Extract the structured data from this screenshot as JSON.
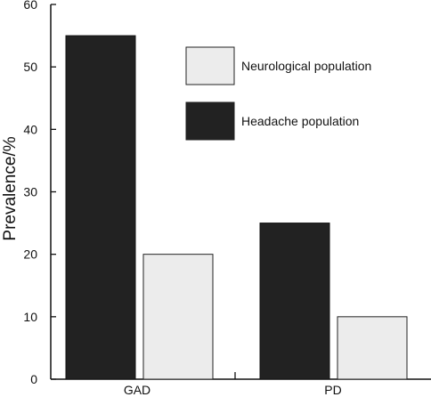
{
  "chart_data": {
    "type": "bar",
    "categories": [
      "GAD",
      "PD"
    ],
    "series": [
      {
        "name": "Headache population",
        "values": [
          55,
          25
        ],
        "color": "#222222"
      },
      {
        "name": "Neurological population",
        "values": [
          20,
          10
        ],
        "color": "#ececec"
      }
    ],
    "ylabel": "Prevalence/%",
    "ylim": [
      0,
      60
    ],
    "yticks": [
      0,
      10,
      20,
      30,
      40,
      50,
      60
    ],
    "grid": false,
    "legend_order": [
      "Neurological population",
      "Headache population"
    ],
    "legend_position": "top-right"
  }
}
